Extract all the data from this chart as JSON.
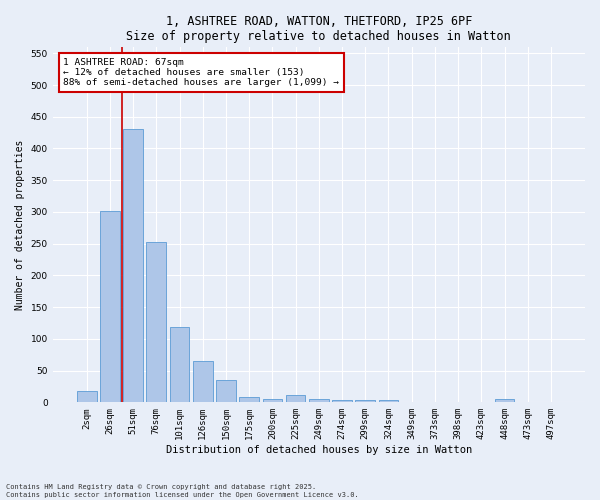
{
  "title_line1": "1, ASHTREE ROAD, WATTON, THETFORD, IP25 6PF",
  "title_line2": "Size of property relative to detached houses in Watton",
  "xlabel": "Distribution of detached houses by size in Watton",
  "ylabel": "Number of detached properties",
  "bar_color": "#aec6e8",
  "bar_edge_color": "#5b9bd5",
  "background_color": "#e8eef8",
  "fig_background_color": "#e8eef8",
  "grid_color": "#ffffff",
  "categories": [
    "2sqm",
    "26sqm",
    "51sqm",
    "76sqm",
    "101sqm",
    "126sqm",
    "150sqm",
    "175sqm",
    "200sqm",
    "225sqm",
    "249sqm",
    "274sqm",
    "299sqm",
    "324sqm",
    "349sqm",
    "373sqm",
    "398sqm",
    "423sqm",
    "448sqm",
    "473sqm",
    "497sqm"
  ],
  "values": [
    18,
    302,
    430,
    253,
    118,
    65,
    35,
    9,
    5,
    11,
    5,
    4,
    3,
    3,
    0,
    0,
    0,
    0,
    5,
    0,
    0
  ],
  "ylim": [
    0,
    560
  ],
  "yticks": [
    0,
    50,
    100,
    150,
    200,
    250,
    300,
    350,
    400,
    450,
    500,
    550
  ],
  "vline_x": 1.5,
  "vline_color": "#cc0000",
  "annotation_title": "1 ASHTREE ROAD: 67sqm",
  "annotation_line2": "← 12% of detached houses are smaller (153)",
  "annotation_line3": "88% of semi-detached houses are larger (1,099) →",
  "annotation_box_color": "#cc0000",
  "footnote_line1": "Contains HM Land Registry data © Crown copyright and database right 2025.",
  "footnote_line2": "Contains public sector information licensed under the Open Government Licence v3.0.",
  "title_fontsize": 8.5,
  "xlabel_fontsize": 7.5,
  "ylabel_fontsize": 7.0,
  "tick_fontsize": 6.5,
  "annotation_fontsize": 6.8,
  "footnote_fontsize": 5.0
}
